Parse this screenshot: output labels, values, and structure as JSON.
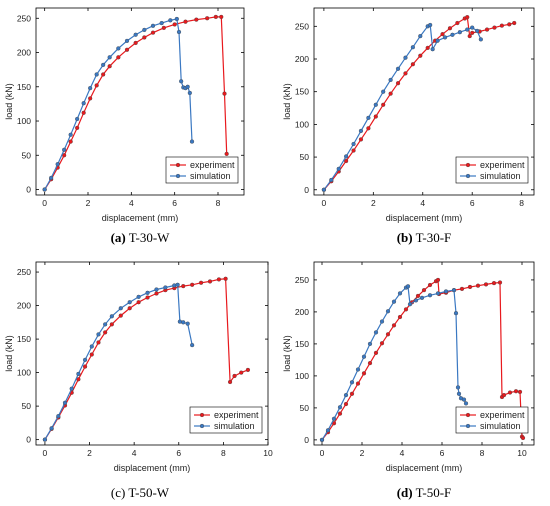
{
  "colors": {
    "experiment": "#e8191d",
    "simulation": "#3a78c2"
  },
  "chart_data": [
    {
      "type": "line",
      "caption_label": "(a)",
      "caption_text": "T-30-W",
      "caption_bold": true,
      "xlabel": "displacement (mm)",
      "ylabel": "load (kN)",
      "xlim": [
        -0.4,
        9.2
      ],
      "ylim": [
        -8,
        265
      ],
      "xticks": [
        0,
        2,
        4,
        6,
        8
      ],
      "yticks": [
        0,
        50,
        100,
        150,
        200,
        250
      ],
      "legend_position": "bottom-right",
      "series": [
        {
          "name": "experiment",
          "color": "experiment",
          "x": [
            0,
            0.3,
            0.6,
            0.9,
            1.2,
            1.5,
            1.8,
            2.1,
            2.4,
            2.7,
            3.0,
            3.4,
            3.8,
            4.2,
            4.6,
            5.0,
            5.5,
            6.0,
            6.5,
            7.0,
            7.5,
            7.9,
            8.15,
            8.3,
            8.4
          ],
          "y": [
            0,
            15,
            32,
            50,
            70,
            90,
            112,
            133,
            152,
            168,
            180,
            193,
            204,
            214,
            222,
            229,
            236,
            241,
            245,
            248,
            250,
            252,
            252,
            140,
            52
          ]
        },
        {
          "name": "simulation",
          "color": "simulation",
          "x": [
            0,
            0.3,
            0.6,
            0.9,
            1.2,
            1.5,
            1.8,
            2.1,
            2.4,
            2.7,
            3.0,
            3.4,
            3.8,
            4.2,
            4.6,
            5.0,
            5.4,
            5.8,
            6.1,
            6.2,
            6.3,
            6.4,
            6.5,
            6.6,
            6.7,
            6.8
          ],
          "y": [
            0,
            17,
            37,
            58,
            80,
            103,
            126,
            148,
            168,
            182,
            193,
            206,
            217,
            226,
            233,
            239,
            243,
            247,
            249,
            230,
            158,
            149,
            148,
            150,
            141,
            70
          ]
        }
      ]
    },
    {
      "type": "line",
      "caption_label": "(b)",
      "caption_text": "T-30-F",
      "caption_bold": true,
      "xlabel": "displacement (mm)",
      "ylabel": "load (kN)",
      "xlim": [
        -0.4,
        8.5
      ],
      "ylim": [
        -8,
        278
      ],
      "xticks": [
        0,
        2,
        4,
        6,
        8
      ],
      "yticks": [
        0,
        50,
        100,
        150,
        200,
        250
      ],
      "legend_position": "bottom-right",
      "series": [
        {
          "name": "experiment",
          "color": "experiment",
          "x": [
            0,
            0.3,
            0.6,
            0.9,
            1.2,
            1.5,
            1.8,
            2.1,
            2.4,
            2.7,
            3.0,
            3.3,
            3.6,
            3.9,
            4.2,
            4.5,
            4.8,
            5.1,
            5.4,
            5.7,
            5.8,
            5.9,
            6.0,
            6.3,
            6.6,
            6.9,
            7.2,
            7.5,
            7.7
          ],
          "y": [
            0,
            13,
            28,
            44,
            60,
            77,
            94,
            112,
            130,
            147,
            163,
            178,
            192,
            205,
            217,
            228,
            238,
            247,
            255,
            262,
            264,
            235,
            240,
            242,
            245,
            248,
            251,
            253,
            255
          ]
        },
        {
          "name": "simulation",
          "color": "simulation",
          "x": [
            0,
            0.3,
            0.6,
            0.9,
            1.2,
            1.5,
            1.8,
            2.1,
            2.4,
            2.7,
            3.0,
            3.3,
            3.6,
            3.9,
            4.2,
            4.3,
            4.4,
            4.6,
            4.9,
            5.2,
            5.5,
            5.8,
            6.0,
            6.2,
            6.35
          ],
          "y": [
            0,
            15,
            32,
            51,
            70,
            90,
            110,
            130,
            150,
            168,
            185,
            202,
            218,
            235,
            250,
            252,
            215,
            228,
            233,
            237,
            241,
            245,
            248,
            243,
            230
          ]
        }
      ]
    },
    {
      "type": "line",
      "caption_label": "(c)",
      "caption_text": "T-50-W",
      "caption_bold": false,
      "xlabel": "displacement (mm)",
      "ylabel": "load (kN)",
      "xlim": [
        -0.4,
        10
      ],
      "ylim": [
        -8,
        265
      ],
      "xticks": [
        0,
        2,
        4,
        6,
        8,
        10
      ],
      "yticks": [
        0,
        50,
        100,
        150,
        200,
        250
      ],
      "legend_position": "bottom-right",
      "series": [
        {
          "name": "experiment",
          "color": "experiment",
          "x": [
            0,
            0.3,
            0.6,
            0.9,
            1.2,
            1.5,
            1.8,
            2.1,
            2.4,
            2.7,
            3.0,
            3.4,
            3.8,
            4.2,
            4.6,
            5.0,
            5.4,
            5.8,
            6.2,
            6.6,
            7.0,
            7.4,
            7.8,
            8.1,
            8.3,
            8.5,
            8.8,
            9.1
          ],
          "y": [
            0,
            16,
            33,
            51,
            70,
            90,
            109,
            127,
            145,
            160,
            172,
            185,
            196,
            205,
            212,
            218,
            223,
            226,
            229,
            231,
            234,
            236,
            239,
            240,
            86,
            95,
            100,
            104
          ]
        },
        {
          "name": "simulation",
          "color": "simulation",
          "x": [
            0,
            0.3,
            0.6,
            0.9,
            1.2,
            1.5,
            1.8,
            2.1,
            2.4,
            2.7,
            3.0,
            3.4,
            3.8,
            4.2,
            4.6,
            5.0,
            5.4,
            5.8,
            5.95,
            6.05,
            6.2,
            6.4,
            6.6
          ],
          "y": [
            0,
            17,
            35,
            55,
            76,
            98,
            119,
            139,
            157,
            172,
            184,
            196,
            205,
            213,
            219,
            224,
            227,
            230,
            231,
            176,
            175,
            173,
            141
          ]
        }
      ]
    },
    {
      "type": "line",
      "caption_label": "(d)",
      "caption_text": "T-50-F",
      "caption_bold": true,
      "xlabel": "displacement (mm)",
      "ylabel": "load (kN)",
      "xlim": [
        -0.4,
        10.6
      ],
      "ylim": [
        -8,
        278
      ],
      "xticks": [
        0,
        2,
        4,
        6,
        8,
        10
      ],
      "yticks": [
        0,
        50,
        100,
        150,
        200,
        250
      ],
      "legend_position": "bottom-right",
      "series": [
        {
          "name": "experiment",
          "color": "experiment",
          "x": [
            0,
            0.3,
            0.6,
            0.9,
            1.2,
            1.5,
            1.8,
            2.1,
            2.4,
            2.7,
            3.0,
            3.3,
            3.6,
            3.9,
            4.2,
            4.5,
            4.8,
            5.1,
            5.4,
            5.7,
            5.8,
            5.85,
            6.2,
            6.6,
            7.0,
            7.4,
            7.8,
            8.2,
            8.6,
            8.9,
            9.0,
            9.1,
            9.4,
            9.7,
            9.9,
            10.0,
            10.05
          ],
          "y": [
            0,
            12,
            26,
            41,
            56,
            72,
            88,
            104,
            120,
            136,
            151,
            165,
            179,
            192,
            204,
            215,
            225,
            234,
            242,
            248,
            250,
            228,
            230,
            234,
            236,
            239,
            241,
            243,
            245,
            246,
            67,
            70,
            74,
            76,
            75,
            5,
            3
          ]
        },
        {
          "name": "simulation",
          "color": "simulation",
          "x": [
            0,
            0.3,
            0.6,
            0.9,
            1.2,
            1.5,
            1.8,
            2.1,
            2.4,
            2.7,
            3.0,
            3.3,
            3.6,
            3.9,
            4.2,
            4.3,
            4.4,
            4.7,
            5.0,
            5.4,
            5.8,
            6.2,
            6.6,
            6.7,
            6.8,
            6.85,
            6.95,
            7.1,
            7.2
          ],
          "y": [
            0,
            15,
            33,
            51,
            70,
            90,
            110,
            130,
            150,
            168,
            185,
            201,
            216,
            229,
            238,
            240,
            212,
            218,
            222,
            226,
            229,
            232,
            234,
            198,
            82,
            72,
            65,
            63,
            57
          ]
        }
      ]
    }
  ]
}
